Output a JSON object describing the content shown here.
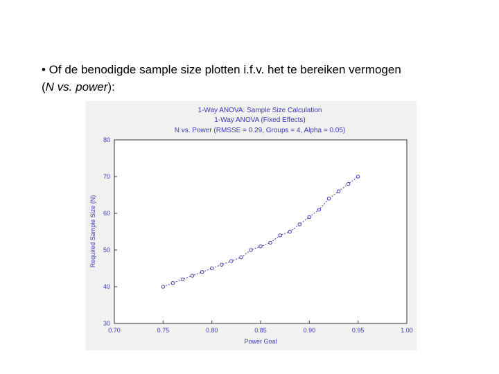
{
  "slide": {
    "bullet_line": "• Of de benodigde sample size plotten i.f.v. het te bereiken vermogen",
    "paren_open": "(",
    "paren_em": "N vs. power",
    "paren_close": "):"
  },
  "chart_data": {
    "type": "line",
    "title_lines": [
      "1-Way ANOVA: Sample Size Calculation",
      "1-Way ANOVA (Fixed Effects)",
      "N vs. Power (RMSSE = 0.29, Groups = 4, Alpha = 0.05)"
    ],
    "xlabel": "Power Goal",
    "ylabel": "Required Sample Size (N)",
    "xlim": [
      0.7,
      1.0
    ],
    "ylim": [
      30,
      80
    ],
    "xticks": [
      "0.70",
      "0.75",
      "0.80",
      "0.85",
      "0.90",
      "0.95",
      "1.00"
    ],
    "yticks": [
      "30",
      "40",
      "50",
      "60",
      "70",
      "80"
    ],
    "grid": false,
    "series": [
      {
        "x": [
          0.75,
          0.76,
          0.77,
          0.78,
          0.79,
          0.8,
          0.81,
          0.82,
          0.83,
          0.84,
          0.85,
          0.86,
          0.87,
          0.88,
          0.89,
          0.9,
          0.91,
          0.92,
          0.93,
          0.94,
          0.95
        ],
        "y": [
          40,
          41,
          42,
          43,
          44,
          45,
          46,
          47,
          48,
          50,
          51,
          52,
          54,
          55,
          57,
          59,
          61,
          64,
          66,
          68,
          70
        ]
      }
    ],
    "colors": {
      "line": "#3a3ab0",
      "text": "#3a3ab0",
      "axis": "#333333"
    }
  }
}
